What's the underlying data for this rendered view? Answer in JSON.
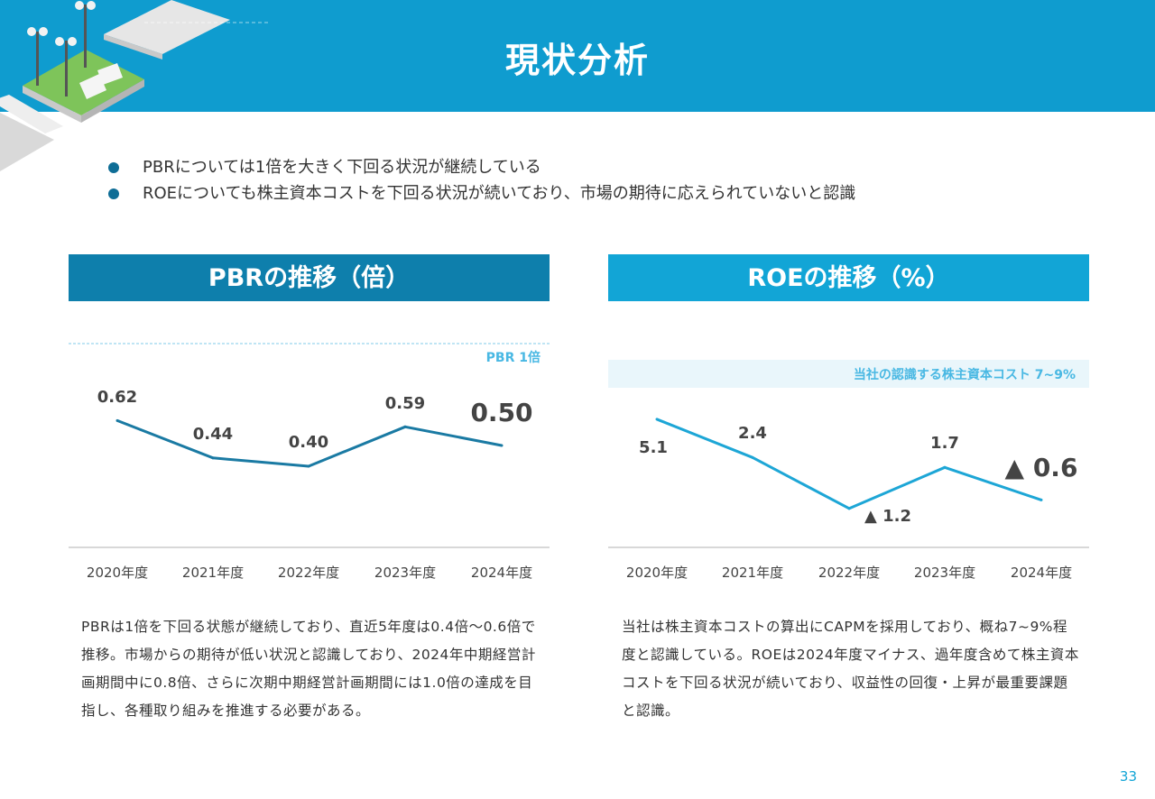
{
  "header": {
    "title": "現状分析"
  },
  "bullets": [
    "PBRについては1倍を大きく下回る状況が継続している",
    "ROEについても株主資本コストを下回る状況が続いており、市場の期待に応えられていないと認識"
  ],
  "colors": {
    "header": "#0f9ccf",
    "pbr_accent": "#0e7fac",
    "roe_accent": "#12a5d6",
    "pbr_line": "#1a7aa3",
    "roe_line": "#1da6d6"
  },
  "chart_data": [
    {
      "type": "line",
      "title": "PBRの推移（倍）",
      "categories": [
        "2020年度",
        "2021年度",
        "2022年度",
        "2023年度",
        "2024年度"
      ],
      "values": [
        0.62,
        0.44,
        0.4,
        0.59,
        0.5
      ],
      "labels": [
        "0.62",
        "0.44",
        "0.40",
        "0.59",
        "0.50"
      ],
      "ylim": [
        0,
        1.0
      ],
      "reference_line": {
        "value": 1.0,
        "label": "PBR 1倍"
      },
      "grid": false,
      "legend": "none"
    },
    {
      "type": "line",
      "title": "ROEの推移（%）",
      "categories": [
        "2020年度",
        "2021年度",
        "2022年度",
        "2023年度",
        "2024年度"
      ],
      "values": [
        5.1,
        2.4,
        -1.2,
        1.7,
        -0.6
      ],
      "labels": [
        "5.1",
        "2.4",
        "▲ 1.2",
        "1.7",
        "▲ 0.6"
      ],
      "reference_band": {
        "range": [
          7,
          9
        ],
        "label": "当社の認識する株主資本コスト 7~9%"
      },
      "grid": false,
      "legend": "none"
    }
  ],
  "descriptions": {
    "pbr": "PBRは1倍を下回る状態が継続しており、直近5年度は0.4倍～0.6倍で推移。市場からの期待が低い状況と認識しており、2024年中期経営計画期間中に0.8倍、さらに次期中期経営計画期間には1.0倍の達成を目指し、各種取り組みを推進する必要がある。",
    "roe": "当社は株主資本コストの算出にCAPMを採用しており、概ね7~9%程度と認識している。ROEは2024年度マイナス、過年度含めて株主資本コストを下回る状況が続いており、収益性の回復・上昇が最重要課題と認識。"
  },
  "page_number": "33"
}
